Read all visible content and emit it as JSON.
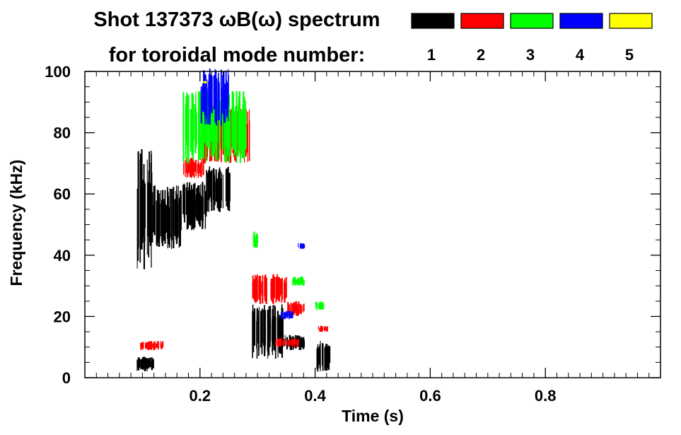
{
  "chart_data": {
    "type": "heatmap",
    "title_line1": "Shot 137373 ωB(ω) spectrum",
    "title_line2": "for toroidal mode number:",
    "xlabel": "Time (s)",
    "ylabel": "Frequency (kHz)",
    "xlim": [
      0.0,
      1.0
    ],
    "ylim": [
      0,
      100
    ],
    "x_ticks": [
      0.2,
      0.4,
      0.6,
      0.8
    ],
    "x_tick_labels": [
      "0.2",
      "0.4",
      "0.6",
      "0.8"
    ],
    "y_ticks": [
      0,
      20,
      40,
      60,
      80,
      100
    ],
    "y_tick_labels": [
      "0",
      "20",
      "40",
      "60",
      "80",
      "100"
    ],
    "legend": [
      {
        "label": "1",
        "color": "#000000"
      },
      {
        "label": "2",
        "color": "#ff0000"
      },
      {
        "label": "3",
        "color": "#00ff00"
      },
      {
        "label": "4",
        "color": "#0000ff"
      },
      {
        "label": "5",
        "color": "#ffff00"
      }
    ],
    "series": [
      {
        "name": "n=1",
        "color": "#000000",
        "regions": [
          {
            "t": [
              0.09,
              0.115
            ],
            "f": [
              35,
              75
            ]
          },
          {
            "t": [
              0.115,
              0.165
            ],
            "f": [
              42,
              63
            ]
          },
          {
            "t": [
              0.165,
              0.21
            ],
            "f": [
              48,
              64
            ]
          },
          {
            "t": [
              0.21,
              0.25
            ],
            "f": [
              54,
              69
            ]
          },
          {
            "t": [
              0.09,
              0.12
            ],
            "f": [
              2,
              7
            ]
          },
          {
            "t": [
              0.29,
              0.345
            ],
            "f": [
              6,
              24
            ]
          },
          {
            "t": [
              0.345,
              0.38
            ],
            "f": [
              9,
              14
            ]
          },
          {
            "t": [
              0.4,
              0.425
            ],
            "f": [
              2,
              12
            ]
          }
        ]
      },
      {
        "name": "n=2",
        "color": "#ff0000",
        "regions": [
          {
            "t": [
              0.205,
              0.285
            ],
            "f": [
              70,
              88
            ]
          },
          {
            "t": [
              0.17,
              0.205
            ],
            "f": [
              65,
              72
            ]
          },
          {
            "t": [
              0.29,
              0.35
            ],
            "f": [
              24,
              34
            ]
          },
          {
            "t": [
              0.35,
              0.38
            ],
            "f": [
              20,
              25
            ]
          },
          {
            "t": [
              0.33,
              0.37
            ],
            "f": [
              10,
              13
            ]
          },
          {
            "t": [
              0.405,
              0.42
            ],
            "f": [
              15,
              17
            ]
          },
          {
            "t": [
              0.095,
              0.135
            ],
            "f": [
              9,
              12
            ]
          }
        ]
      },
      {
        "name": "n=3",
        "color": "#00ff00",
        "regions": [
          {
            "t": [
              0.17,
              0.28
            ],
            "f": [
              70,
              94
            ]
          },
          {
            "t": [
              0.29,
              0.3
            ],
            "f": [
              42,
              48
            ]
          },
          {
            "t": [
              0.36,
              0.38
            ],
            "f": [
              30,
              33
            ]
          },
          {
            "t": [
              0.4,
              0.415
            ],
            "f": [
              22,
              25
            ]
          }
        ]
      },
      {
        "name": "n=4",
        "color": "#0000ff",
        "regions": [
          {
            "t": [
              0.2,
              0.25
            ],
            "f": [
              82,
              101
            ]
          },
          {
            "t": [
              0.34,
              0.36
            ],
            "f": [
              19,
              22
            ]
          },
          {
            "t": [
              0.37,
              0.38
            ],
            "f": [
              42,
              44
            ]
          }
        ]
      },
      {
        "name": "n=5",
        "color": "#ffff00",
        "regions": [
          {
            "t": [
              0.205,
              0.21
            ],
            "f": [
              96,
              97
            ]
          }
        ]
      }
    ]
  }
}
